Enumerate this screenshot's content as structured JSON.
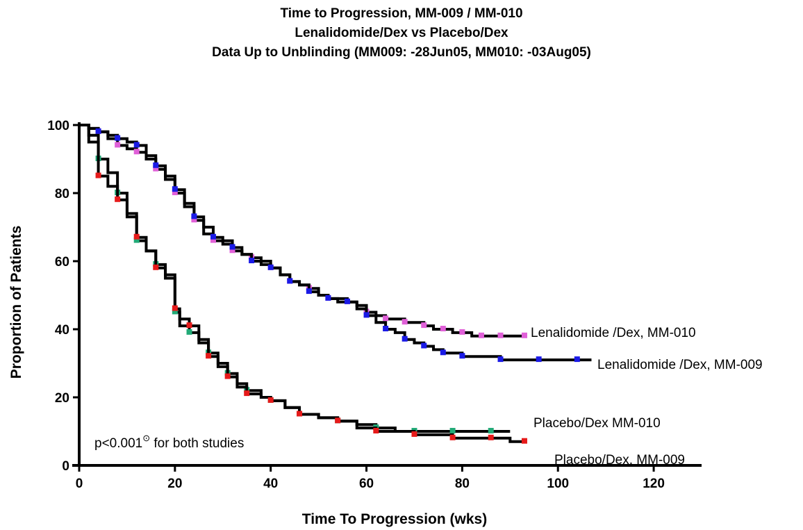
{
  "header": {
    "title_lines": [
      "Time to Progression, MM-009 / MM-010",
      "Lenalidomide/Dex vs Placebo/Dex",
      "Data Up to Unblinding (MM009: -28Jun05, MM010: -03Aug05)"
    ]
  },
  "chart_data": {
    "type": "line",
    "step": true,
    "xlabel": "Time To Progression (wks)",
    "ylabel": "Proportion of Patients",
    "xlim": [
      0,
      130
    ],
    "ylim": [
      0,
      100
    ],
    "xticks": [
      0,
      20,
      40,
      60,
      80,
      100,
      120
    ],
    "yticks": [
      0,
      20,
      40,
      60,
      80,
      100
    ],
    "grid": false,
    "legend": "inline labels at curve ends",
    "annotation": {
      "text": "p<0.001",
      "superscript": "⊙",
      "suffix": " for both studies"
    },
    "series": [
      {
        "name": "Lenalidomide /Dex, MM-010",
        "marker_color": "#e060d8",
        "x": [
          0,
          2,
          4,
          6,
          8,
          10,
          12,
          14,
          16,
          18,
          20,
          22,
          24,
          26,
          28,
          30,
          32,
          34,
          36,
          38,
          40,
          42,
          44,
          46,
          48,
          50,
          52,
          54,
          56,
          58,
          60,
          62,
          64,
          66,
          68,
          70,
          72,
          74,
          76,
          78,
          80,
          82,
          84,
          86,
          88,
          90,
          93
        ],
        "y": [
          100,
          99,
          98,
          96,
          94,
          93,
          92,
          90,
          87,
          84,
          80,
          76,
          72,
          68,
          66,
          65,
          63,
          62,
          61,
          60,
          58,
          56,
          54,
          53,
          52,
          50,
          49,
          48,
          48,
          47,
          45,
          44,
          43,
          43,
          42,
          42,
          41,
          40,
          40,
          39,
          39,
          38,
          38,
          38,
          38,
          38,
          38
        ]
      },
      {
        "name": "Lenalidomide /Dex, MM-009",
        "marker_color": "#1a1ae6",
        "x": [
          0,
          2,
          4,
          6,
          8,
          10,
          12,
          14,
          16,
          18,
          20,
          22,
          24,
          26,
          28,
          30,
          32,
          34,
          36,
          38,
          40,
          42,
          44,
          46,
          48,
          50,
          52,
          54,
          56,
          58,
          60,
          62,
          64,
          66,
          68,
          70,
          72,
          74,
          76,
          78,
          80,
          84,
          88,
          92,
          96,
          100,
          104,
          107
        ],
        "y": [
          100,
          99,
          98,
          97,
          96,
          95,
          94,
          91,
          88,
          85,
          81,
          77,
          73,
          70,
          67,
          66,
          64,
          62,
          60,
          59,
          58,
          56,
          54,
          53,
          51,
          50,
          49,
          49,
          48,
          46,
          44,
          42,
          40,
          39,
          37,
          36,
          35,
          34,
          33,
          33,
          32,
          32,
          31,
          31,
          31,
          31,
          31,
          31
        ]
      },
      {
        "name": "Placebo/Dex MM-010",
        "marker_color": "#22aa77",
        "x": [
          0,
          2,
          4,
          6,
          8,
          10,
          12,
          14,
          16,
          18,
          20,
          21,
          23,
          25,
          27,
          29,
          31,
          33,
          35,
          38,
          40,
          43,
          46,
          50,
          54,
          58,
          62,
          66,
          70,
          74,
          78,
          82,
          86,
          90
        ],
        "y": [
          100,
          97,
          90,
          86,
          80,
          73,
          66,
          63,
          59,
          56,
          45,
          41,
          39,
          36,
          33,
          30,
          27,
          24,
          22,
          20,
          19,
          17,
          15,
          14,
          13,
          12,
          11,
          10,
          10,
          10,
          10,
          10,
          10,
          10
        ]
      },
      {
        "name": "Placebo/Dex, MM-009",
        "marker_color": "#e61a1a",
        "x": [
          0,
          2,
          4,
          6,
          8,
          10,
          12,
          14,
          16,
          18,
          20,
          21,
          23,
          25,
          27,
          29,
          31,
          33,
          35,
          38,
          40,
          43,
          46,
          50,
          54,
          58,
          62,
          66,
          70,
          74,
          78,
          82,
          86,
          90,
          93
        ],
        "y": [
          100,
          95,
          85,
          82,
          78,
          74,
          67,
          63,
          58,
          55,
          46,
          43,
          41,
          37,
          32,
          29,
          26,
          23,
          21,
          20,
          19,
          17,
          15,
          14,
          13,
          11,
          10,
          10,
          9,
          9,
          8,
          8,
          8,
          7,
          7
        ]
      }
    ]
  }
}
